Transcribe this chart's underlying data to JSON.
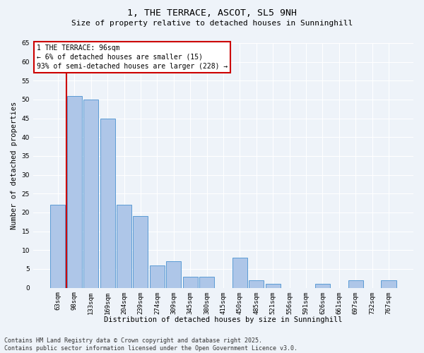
{
  "title": "1, THE TERRACE, ASCOT, SL5 9NH",
  "subtitle": "Size of property relative to detached houses in Sunninghill",
  "xlabel": "Distribution of detached houses by size in Sunninghill",
  "ylabel": "Number of detached properties",
  "categories": [
    "63sqm",
    "98sqm",
    "133sqm",
    "169sqm",
    "204sqm",
    "239sqm",
    "274sqm",
    "309sqm",
    "345sqm",
    "380sqm",
    "415sqm",
    "450sqm",
    "485sqm",
    "521sqm",
    "556sqm",
    "591sqm",
    "626sqm",
    "661sqm",
    "697sqm",
    "732sqm",
    "767sqm"
  ],
  "values": [
    22,
    51,
    50,
    45,
    22,
    19,
    6,
    7,
    3,
    3,
    0,
    8,
    2,
    1,
    0,
    0,
    1,
    0,
    2,
    0,
    2
  ],
  "bar_color": "#aec6e8",
  "bar_edge_color": "#5b9bd5",
  "red_line_x": 0.5,
  "annotation_title": "1 THE TERRACE: 96sqm",
  "annotation_line1": "← 6% of detached houses are smaller (15)",
  "annotation_line2": "93% of semi-detached houses are larger (228) →",
  "annotation_box_color": "#ffffff",
  "annotation_box_edge": "#cc0000",
  "red_line_color": "#cc0000",
  "ylim": [
    0,
    65
  ],
  "yticks": [
    0,
    5,
    10,
    15,
    20,
    25,
    30,
    35,
    40,
    45,
    50,
    55,
    60,
    65
  ],
  "bg_color": "#eef3f9",
  "grid_color": "#ffffff",
  "footer": "Contains HM Land Registry data © Crown copyright and database right 2025.\nContains public sector information licensed under the Open Government Licence v3.0.",
  "title_fontsize": 9.5,
  "subtitle_fontsize": 8,
  "axis_label_fontsize": 7.5,
  "tick_fontsize": 6.5,
  "annotation_fontsize": 7,
  "footer_fontsize": 6
}
